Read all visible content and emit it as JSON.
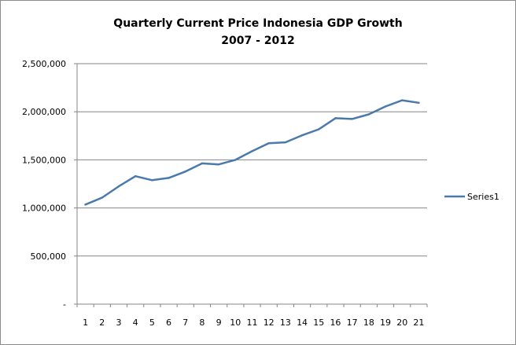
{
  "chart_data": {
    "type": "line",
    "title_line1": "Quarterly Current Price Indonesia GDP Growth",
    "title_line2": "2007 - 2012",
    "xlabel": "",
    "ylabel": "",
    "categories": [
      "1",
      "2",
      "3",
      "4",
      "5",
      "6",
      "7",
      "8",
      "9",
      "10",
      "11",
      "12",
      "13",
      "14",
      "15",
      "16",
      "17",
      "18",
      "19",
      "20",
      "21"
    ],
    "ylim": [
      0,
      2500000
    ],
    "y_ticks": [
      {
        "value": 0,
        "label": "-"
      },
      {
        "value": 500000,
        "label": "500,000"
      },
      {
        "value": 1000000,
        "label": "1,000,000"
      },
      {
        "value": 1500000,
        "label": "1,500,000"
      },
      {
        "value": 2000000,
        "label": "2,000,000"
      },
      {
        "value": 2500000,
        "label": "2,500,000"
      }
    ],
    "grid": "horizontal",
    "legend_position": "right",
    "series": [
      {
        "name": "Series1",
        "color": "#4a7aab",
        "values": [
          1035000,
          1107000,
          1225000,
          1330000,
          1288000,
          1312000,
          1378000,
          1463000,
          1453000,
          1500000,
          1590000,
          1672000,
          1682000,
          1755000,
          1818000,
          1933000,
          1925000,
          1973000,
          2055000,
          2119000,
          2093000
        ]
      }
    ]
  }
}
